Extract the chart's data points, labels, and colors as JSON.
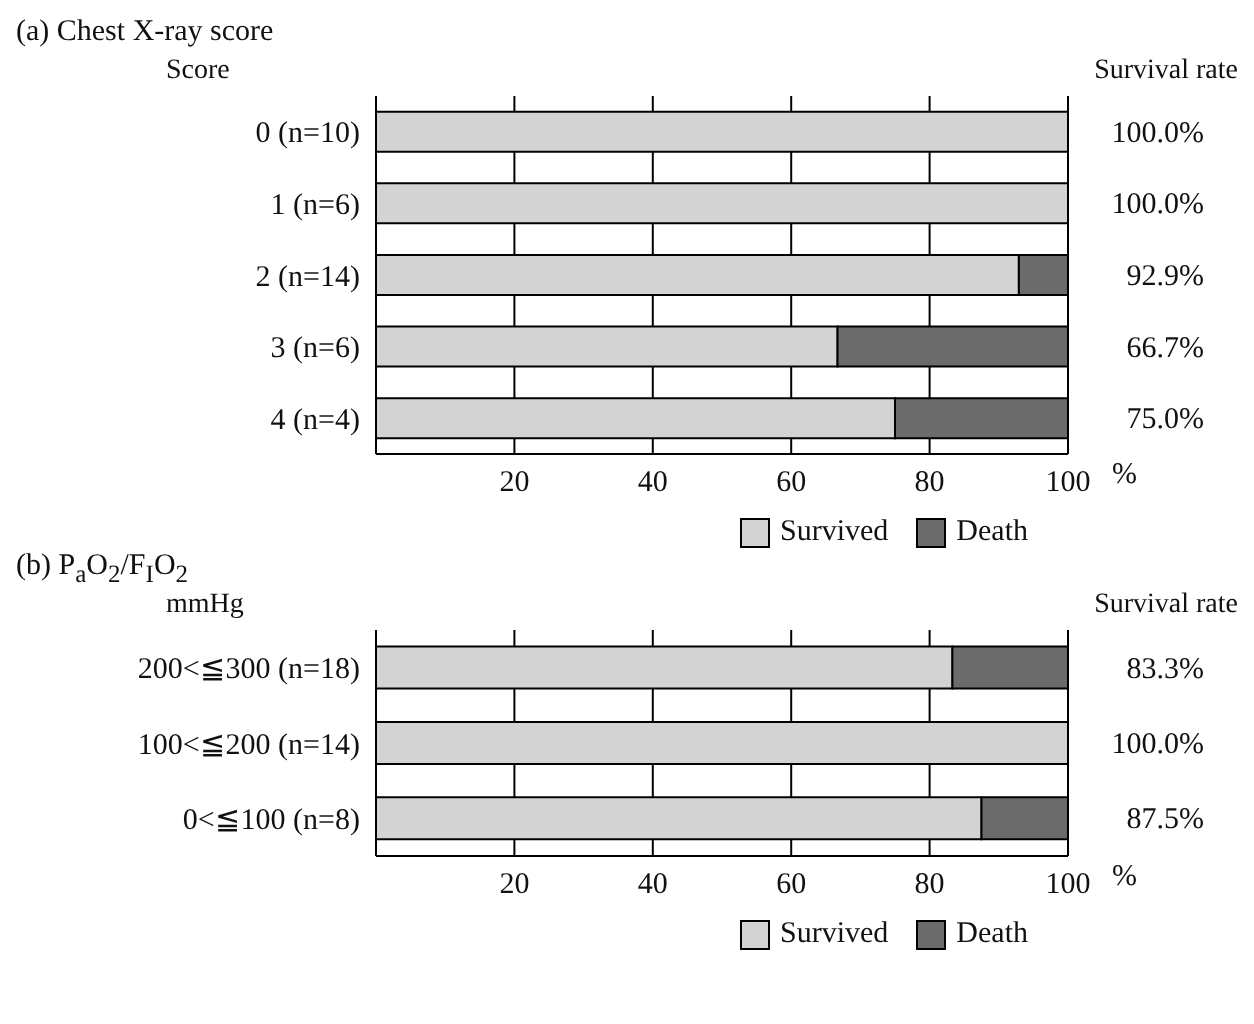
{
  "chart_data": [
    {
      "type": "bar",
      "orientation": "horizontal",
      "stacked": true,
      "title": "(a) Chest X-ray score",
      "ylabel": "Score",
      "xlabel": "%",
      "annotations": [
        "Survival rate"
      ],
      "categories": [
        "0 (n=10)",
        "1 (n=6)",
        "2 (n=14)",
        "3 (n=6)",
        "4 (n=4)"
      ],
      "series": [
        {
          "name": "Survived",
          "color": "#d3d3d3",
          "values": [
            100,
            100,
            92.9,
            66.7,
            75
          ],
          "value_labels": [
            "100.0%",
            "100.0%",
            "92.9%",
            "66.7%",
            "75.0%"
          ]
        },
        {
          "name": "Death",
          "color": "#6b6b6b",
          "values": [
            0,
            0,
            7.1,
            33.3,
            25
          ]
        }
      ],
      "xlim": [
        0,
        100
      ],
      "xticks": [
        {
          "value": 0,
          "label": null
        },
        20,
        40,
        60,
        80,
        100
      ],
      "grid": "x",
      "legend": "bottom right"
    },
    {
      "type": "bar",
      "orientation": "horizontal",
      "stacked": true,
      "title": "(b) P$_{a}$O$_{2}$/F$_{I}$O$_{2}$",
      "ylabel": "mmHg",
      "xlabel": "%",
      "annotations": [
        "Survival rate"
      ],
      "categories": [
        "200<≦300 (n=18)",
        "100<≦200 (n=14)",
        "0<≦100 (n=8)"
      ],
      "series": [
        {
          "name": "Survived",
          "color": "#d3d3d3",
          "values": [
            83.3,
            100,
            87.5
          ],
          "value_labels": [
            "83.3%",
            "100.0%",
            "87.5%"
          ]
        },
        {
          "name": "Death",
          "color": "#6b6b6b",
          "values": [
            16.7,
            0,
            12.5
          ]
        }
      ],
      "xlim": [
        0,
        100
      ],
      "xticks": [
        {
          "value": 0,
          "label": null
        },
        20,
        40,
        60,
        80,
        100
      ],
      "grid": "x",
      "legend": "bottom right"
    }
  ]
}
